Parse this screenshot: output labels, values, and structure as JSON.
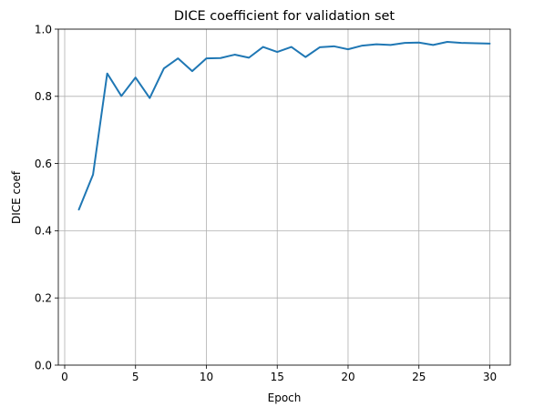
{
  "chart_data": {
    "type": "line",
    "title": "DICE coefficient for validation set",
    "xlabel": "Epoch",
    "ylabel": "DICE coef",
    "xlim": [
      -0.45,
      31.45
    ],
    "ylim": [
      0.0,
      1.0
    ],
    "xticks": [
      0,
      5,
      10,
      15,
      20,
      25,
      30
    ],
    "xtick_labels": [
      "0",
      "5",
      "10",
      "15",
      "20",
      "25",
      "30"
    ],
    "yticks": [
      0.0,
      0.2,
      0.4,
      0.6,
      0.8,
      1.0
    ],
    "ytick_labels": [
      "0.0",
      "0.2",
      "0.4",
      "0.6",
      "0.8",
      "1.0"
    ],
    "grid": true,
    "series": [
      {
        "color": "#1f77b4",
        "x": [
          1,
          2,
          3,
          4,
          5,
          6,
          7,
          8,
          9,
          10,
          11,
          12,
          13,
          14,
          15,
          16,
          17,
          18,
          19,
          20,
          21,
          22,
          23,
          24,
          25,
          26,
          27,
          28,
          29,
          30
        ],
        "y": [
          0.463,
          0.567,
          0.868,
          0.801,
          0.856,
          0.795,
          0.883,
          0.913,
          0.875,
          0.913,
          0.914,
          0.924,
          0.915,
          0.947,
          0.932,
          0.947,
          0.917,
          0.946,
          0.949,
          0.94,
          0.951,
          0.955,
          0.953,
          0.959,
          0.96,
          0.953,
          0.962,
          0.959,
          0.958,
          0.957
        ]
      }
    ]
  }
}
